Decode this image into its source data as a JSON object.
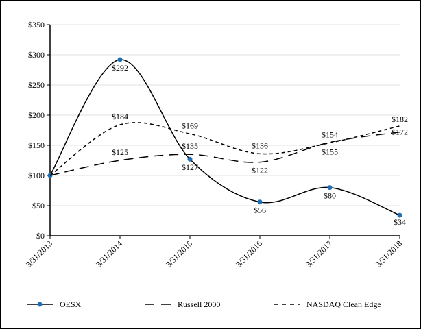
{
  "chart_data": {
    "type": "line",
    "title": "",
    "xlabel": "",
    "ylabel": "",
    "categories": [
      "3/31/2013",
      "3/31/2014",
      "3/31/2015",
      "3/31/2016",
      "3/31/2017",
      "3/31/2018"
    ],
    "yticks": [
      "$0",
      "$50",
      "$100",
      "$150",
      "$200",
      "$250",
      "$300",
      "$350"
    ],
    "ylim": [
      0,
      350
    ],
    "grid": true,
    "legend_position": "bottom",
    "series": [
      {
        "name": "OESX",
        "values": [
          100,
          292,
          127,
          56,
          80,
          34
        ],
        "labels": [
          "",
          "$292",
          "$127",
          "$56",
          "$80",
          "$34"
        ],
        "color": "#000000",
        "marker_color": "#1f6fb5",
        "style": "solid"
      },
      {
        "name": "Russell 2000",
        "values": [
          100,
          125,
          135,
          122,
          155,
          172
        ],
        "labels": [
          "",
          "$125",
          "$135",
          "$122",
          "$155",
          "$172"
        ],
        "color": "#000000",
        "style": "long-dash"
      },
      {
        "name": "NASDAQ Clean Edge",
        "values": [
          100,
          184,
          169,
          136,
          154,
          182
        ],
        "labels": [
          "",
          "$184",
          "$169",
          "$136",
          "$154",
          "$182"
        ],
        "color": "#000000",
        "style": "short-dash"
      }
    ]
  }
}
